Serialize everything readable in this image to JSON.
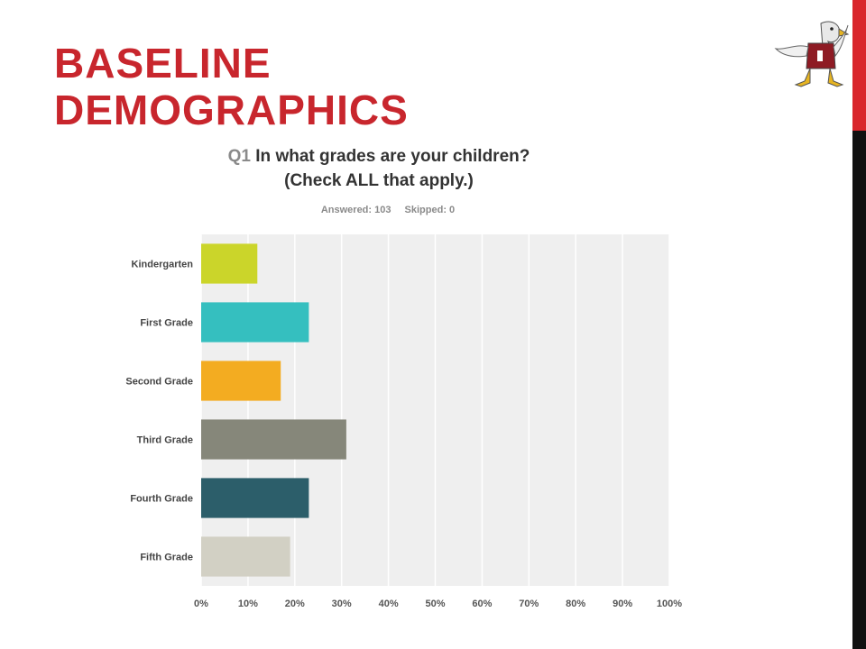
{
  "slide": {
    "title_line1": "BASELINE",
    "title_line2": "DEMOGRAPHICS"
  },
  "survey": {
    "question_number": "Q1",
    "question_line1": "In what grades are your children?",
    "question_line2": "(Check ALL that apply.)",
    "answered": "Answered: 103",
    "skipped": "Skipped: 0"
  },
  "colors": {
    "accent_red": "#c8262d",
    "plot_bg": "#efefef"
  },
  "chart_data": {
    "type": "bar",
    "orientation": "horizontal",
    "categories": [
      "Kindergarten",
      "First Grade",
      "Second Grade",
      "Third Grade",
      "Fourth Grade",
      "Fifth Grade"
    ],
    "values": [
      12,
      23,
      17,
      31,
      23,
      19
    ],
    "colors": [
      "#cbd52a",
      "#35bfbf",
      "#f3ac21",
      "#86877a",
      "#2c5e6a",
      "#d2d0c4"
    ],
    "xlim": [
      0,
      100
    ],
    "xticks": [
      "0%",
      "10%",
      "20%",
      "30%",
      "40%",
      "50%",
      "60%",
      "70%",
      "80%",
      "90%",
      "100%"
    ],
    "grid": true,
    "legend": "none"
  }
}
